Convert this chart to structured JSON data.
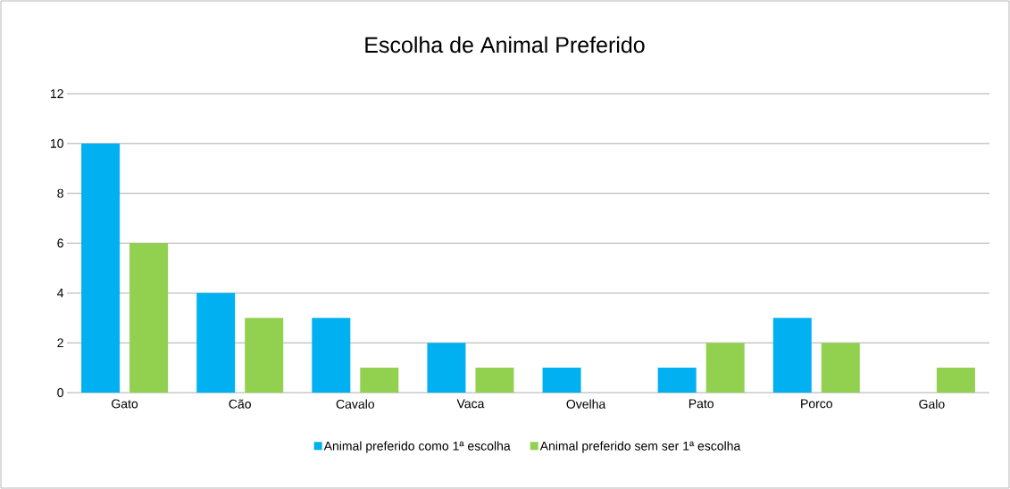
{
  "chart_data": {
    "type": "bar",
    "title": "Escolha de Animal Preferido",
    "categories": [
      "Gato",
      "Cão",
      "Cavalo",
      "Vaca",
      "Ovelha",
      "Pato",
      "Porco",
      "Galo"
    ],
    "series": [
      {
        "name": "Animal preferido como 1ª escolha",
        "color": "#00b0f0",
        "values": [
          10,
          4,
          3,
          2,
          1,
          1,
          3,
          0
        ]
      },
      {
        "name": "Animal preferido sem ser 1ª escolha",
        "color": "#92d050",
        "values": [
          6,
          3,
          1,
          1,
          0,
          2,
          2,
          1
        ]
      }
    ],
    "ylim": [
      0,
      12
    ],
    "yticks": [
      0,
      2,
      4,
      6,
      8,
      10,
      12
    ],
    "grid": "y",
    "legend": "bottom"
  }
}
